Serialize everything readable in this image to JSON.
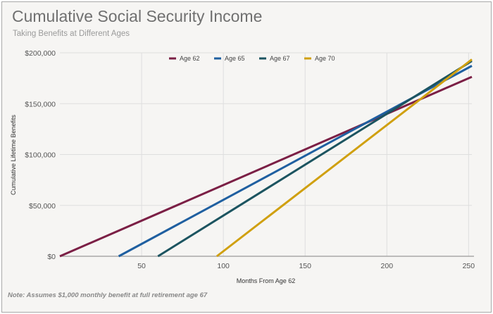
{
  "title": "Cumulative Social Security Income",
  "subtitle": "Taking Benefits at Different Ages",
  "note": "Note: Assumes $1,000 monthly benefit at full retirement age 67",
  "chart_data": {
    "type": "line",
    "title": "Cumulative Social Security Income",
    "subtitle": "Taking Benefits at Different Ages",
    "xlabel": "Months From Age 62",
    "ylabel": "Cumulative Lifetime Benefits",
    "xlim": [
      0,
      252
    ],
    "ylim": [
      0,
      200000
    ],
    "x_ticks": [
      50,
      100,
      150,
      200,
      250
    ],
    "y_ticks": [
      0,
      50000,
      100000,
      150000,
      200000
    ],
    "y_tick_labels": [
      "$0",
      "$50,000",
      "$100,000",
      "$150,000",
      "$200,000"
    ],
    "grid": true,
    "legend_position": "top",
    "series": [
      {
        "name": "Age 62",
        "color": "#7b1f45",
        "x": [
          0,
          252
        ],
        "y": [
          0,
          176400
        ]
      },
      {
        "name": "Age 65",
        "color": "#1f5fa0",
        "x": [
          36,
          252
        ],
        "y": [
          0,
          187200
        ]
      },
      {
        "name": "Age 67",
        "color": "#1c5460",
        "x": [
          60,
          252
        ],
        "y": [
          0,
          192000
        ]
      },
      {
        "name": "Age 70",
        "color": "#d0a010",
        "x": [
          96,
          252
        ],
        "y": [
          0,
          193440
        ]
      }
    ]
  }
}
